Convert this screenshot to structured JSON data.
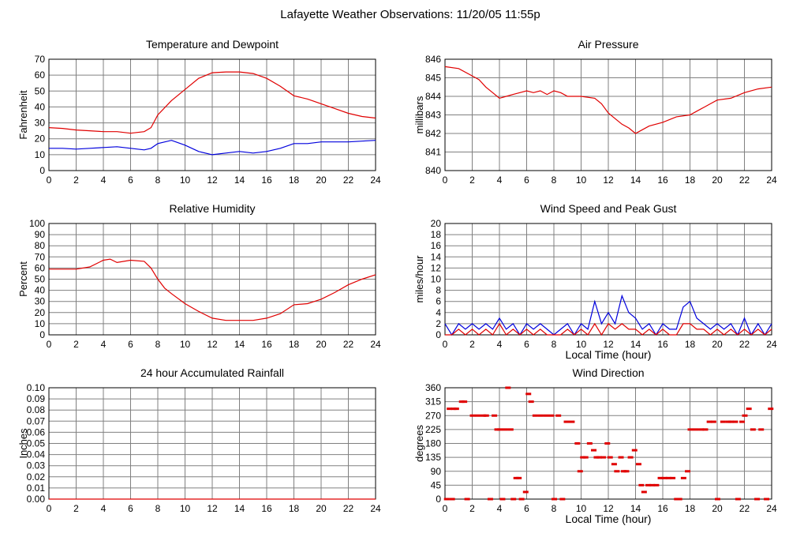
{
  "page_title": "Lafayette Weather Observations: 11/20/05 11:55p",
  "colors": {
    "red": "#e00000",
    "blue": "#0000dd",
    "grid": "#808080"
  },
  "chart_data": [
    {
      "id": "temperature",
      "type": "line",
      "title": "Temperature and Dewpoint",
      "ylabel": "Fahrenheit",
      "xlabel": "",
      "xlim": [
        0,
        24
      ],
      "ylim": [
        0,
        70
      ],
      "x_ticks": [
        "0",
        "2",
        "4",
        "6",
        "8",
        "10",
        "12",
        "14",
        "16",
        "18",
        "20",
        "22",
        "24"
      ],
      "y_ticks": [
        "0",
        "10",
        "20",
        "30",
        "40",
        "50",
        "60",
        "70"
      ],
      "grid": true,
      "x": [
        0,
        1,
        2,
        3,
        4,
        5,
        6,
        7,
        7.5,
        8,
        9,
        10,
        11,
        12,
        13,
        14,
        15,
        16,
        17,
        18,
        19,
        20,
        21,
        22,
        23,
        24
      ],
      "series": [
        {
          "color": "red",
          "values": [
            27,
            26.5,
            25.5,
            25,
            24.5,
            24.5,
            23.5,
            24.5,
            27,
            35,
            44,
            51,
            58,
            61.5,
            62,
            62,
            61,
            58,
            53,
            47,
            45,
            42,
            39,
            36,
            34,
            33
          ]
        },
        {
          "color": "blue",
          "values": [
            14,
            14,
            13.5,
            14,
            14.5,
            15,
            14,
            13,
            14,
            17,
            19,
            16,
            12,
            10,
            11,
            12,
            11,
            12,
            14,
            17,
            17,
            18,
            18,
            18,
            18.5,
            19
          ]
        }
      ]
    },
    {
      "id": "pressure",
      "type": "line",
      "title": "Air Pressure",
      "ylabel": "millibars",
      "xlabel": "",
      "xlim": [
        0,
        24
      ],
      "ylim": [
        840,
        846
      ],
      "x_ticks": [
        "0",
        "2",
        "4",
        "6",
        "8",
        "10",
        "12",
        "14",
        "16",
        "18",
        "20",
        "22",
        "24"
      ],
      "y_ticks": [
        "840",
        "841",
        "842",
        "843",
        "844",
        "845",
        "846"
      ],
      "grid": true,
      "x": [
        0,
        1,
        2,
        2.5,
        3,
        3.5,
        4,
        4.5,
        5,
        5.5,
        6,
        6.5,
        7,
        7.5,
        8,
        8.5,
        9,
        10,
        11,
        11.5,
        12,
        12.5,
        13,
        13.5,
        14,
        14.5,
        15,
        16,
        17,
        18,
        18.5,
        19,
        19.5,
        20,
        21,
        22,
        23,
        24
      ],
      "series": [
        {
          "color": "red",
          "values": [
            845.6,
            845.5,
            845.1,
            844.9,
            844.5,
            844.2,
            843.9,
            844.0,
            844.1,
            844.2,
            844.3,
            844.2,
            844.3,
            844.1,
            844.3,
            844.2,
            844.0,
            844.0,
            843.9,
            843.6,
            843.1,
            842.8,
            842.5,
            842.3,
            842.0,
            842.2,
            842.4,
            842.6,
            842.9,
            843.0,
            843.2,
            843.4,
            843.6,
            843.8,
            843.9,
            844.2,
            844.4,
            844.5
          ]
        }
      ]
    },
    {
      "id": "humidity",
      "type": "line",
      "title": "Relative Humidity",
      "ylabel": "Percent",
      "xlabel": "",
      "xlim": [
        0,
        24
      ],
      "ylim": [
        0,
        100
      ],
      "x_ticks": [
        "0",
        "2",
        "4",
        "6",
        "8",
        "10",
        "12",
        "14",
        "16",
        "18",
        "20",
        "22",
        "24"
      ],
      "y_ticks": [
        "0",
        "10",
        "20",
        "30",
        "40",
        "50",
        "60",
        "70",
        "80",
        "90",
        "100"
      ],
      "grid": true,
      "x": [
        0,
        1,
        2,
        3,
        4,
        4.5,
        5,
        6,
        7,
        7.5,
        8,
        8.5,
        9,
        10,
        11,
        12,
        13,
        14,
        15,
        16,
        17,
        18,
        19,
        20,
        21,
        22,
        23,
        24
      ],
      "series": [
        {
          "color": "red",
          "values": [
            59,
            59,
            59,
            61,
            67,
            68,
            65,
            67,
            66,
            60,
            50,
            42,
            37,
            28,
            21,
            15,
            13,
            13,
            13,
            15,
            19,
            27,
            28,
            32,
            38,
            45,
            50,
            54
          ]
        }
      ]
    },
    {
      "id": "wind",
      "type": "line",
      "title": "Wind Speed and Peak Gust",
      "ylabel": "miles/hour",
      "xlabel": "Local Time (hour)",
      "xlim": [
        0,
        24
      ],
      "ylim": [
        0,
        20
      ],
      "x_ticks": [
        "0",
        "2",
        "4",
        "6",
        "8",
        "10",
        "12",
        "14",
        "16",
        "18",
        "20",
        "22",
        "24"
      ],
      "y_ticks": [
        "0",
        "2",
        "4",
        "6",
        "8",
        "10",
        "12",
        "14",
        "16",
        "18",
        "20"
      ],
      "grid": true,
      "x": [
        0,
        0.5,
        1,
        1.5,
        2,
        2.5,
        3,
        3.5,
        4,
        4.5,
        5,
        5.5,
        6,
        6.5,
        7,
        7.5,
        8,
        8.5,
        9,
        9.5,
        10,
        10.5,
        11,
        11.5,
        12,
        12.5,
        13,
        13.5,
        14,
        14.5,
        15,
        15.5,
        16,
        16.5,
        17,
        17.5,
        18,
        18.5,
        19,
        19.5,
        20,
        20.5,
        21,
        21.5,
        22,
        22.5,
        23,
        23.5,
        24
      ],
      "series": [
        {
          "color": "blue",
          "values": [
            2,
            0,
            2,
            1,
            2,
            1,
            2,
            1,
            3,
            1,
            2,
            0,
            2,
            1,
            2,
            1,
            0,
            1,
            2,
            0,
            2,
            1,
            6,
            2,
            4,
            2,
            7,
            4,
            3,
            1,
            2,
            0,
            2,
            1,
            1,
            5,
            6,
            3,
            2,
            1,
            2,
            1,
            2,
            0,
            3,
            0,
            2,
            0,
            2
          ]
        },
        {
          "color": "red",
          "values": [
            0,
            0,
            1,
            0,
            1,
            0,
            1,
            0,
            2,
            0,
            1,
            0,
            1,
            0,
            1,
            0,
            0,
            0,
            1,
            0,
            1,
            0,
            2,
            0,
            2,
            1,
            2,
            1,
            1,
            0,
            1,
            0,
            1,
            0,
            0,
            2,
            2,
            1,
            1,
            0,
            1,
            0,
            1,
            0,
            1,
            0,
            1,
            0,
            1
          ]
        }
      ]
    },
    {
      "id": "rainfall",
      "type": "line",
      "title": "24 hour Accumulated Rainfall",
      "ylabel": "Inches",
      "xlabel": "",
      "xlim": [
        0,
        24
      ],
      "ylim": [
        0,
        0.1
      ],
      "x_ticks": [
        "0",
        "2",
        "4",
        "6",
        "8",
        "10",
        "12",
        "14",
        "16",
        "18",
        "20",
        "22",
        "24"
      ],
      "y_ticks": [
        "0.00",
        "0.01",
        "0.02",
        "0.03",
        "0.04",
        "0.05",
        "0.06",
        "0.07",
        "0.08",
        "0.09",
        "0.10"
      ],
      "grid": true,
      "x": [
        0,
        24
      ],
      "series": [
        {
          "color": "red",
          "values": [
            0,
            0
          ]
        }
      ]
    },
    {
      "id": "direction",
      "type": "scatter",
      "title": "Wind Direction",
      "ylabel": "degrees",
      "xlabel": "Local Time (hour)",
      "xlim": [
        0,
        24
      ],
      "ylim": [
        0,
        360
      ],
      "x_ticks": [
        "0",
        "2",
        "4",
        "6",
        "8",
        "10",
        "12",
        "14",
        "16",
        "18",
        "20",
        "22",
        "24"
      ],
      "y_ticks": [
        "0",
        "45",
        "90",
        "135",
        "180",
        "225",
        "270",
        "315",
        "360"
      ],
      "grid": true,
      "x": [
        0.1,
        0.3,
        0.5,
        0.6,
        0.8,
        1.2,
        1.4,
        1.6,
        2.0,
        2.4,
        2.8,
        3.0,
        3.3,
        3.6,
        3.8,
        4.0,
        4.2,
        4.4,
        4.6,
        4.8,
        5.0,
        5.2,
        5.4,
        5.6,
        5.9,
        6.1,
        6.3,
        6.6,
        7.0,
        7.4,
        7.8,
        8.0,
        8.3,
        8.6,
        8.9,
        9.3,
        9.7,
        9.9,
        10.1,
        10.3,
        10.6,
        10.9,
        11.1,
        11.3,
        11.6,
        11.9,
        12.1,
        12.4,
        12.6,
        12.9,
        13.1,
        13.3,
        13.6,
        13.9,
        14.2,
        14.4,
        14.6,
        14.9,
        15.2,
        15.5,
        15.8,
        16.1,
        16.4,
        16.7,
        17.0,
        17.2,
        17.5,
        17.8,
        18.0,
        18.4,
        18.8,
        19.1,
        19.4,
        19.7,
        20.0,
        20.4,
        20.8,
        21.0,
        21.3,
        21.5,
        21.8,
        22.0,
        22.3,
        22.6,
        22.9,
        23.2,
        23.6,
        23.9
      ],
      "series": [
        {
          "color": "red",
          "values": [
            0,
            292,
            0,
            292,
            292,
            315,
            315,
            0,
            270,
            270,
            270,
            270,
            0,
            270,
            225,
            225,
            0,
            225,
            360,
            225,
            0,
            68,
            68,
            0,
            23,
            340,
            315,
            270,
            270,
            270,
            270,
            0,
            270,
            0,
            250,
            250,
            180,
            90,
            135,
            135,
            180,
            158,
            135,
            135,
            135,
            180,
            135,
            113,
            90,
            135,
            90,
            90,
            135,
            158,
            113,
            45,
            23,
            45,
            45,
            45,
            68,
            68,
            68,
            68,
            0,
            0,
            68,
            90,
            225,
            225,
            225,
            225,
            250,
            250,
            0,
            250,
            250,
            250,
            250,
            0,
            250,
            270,
            292,
            225,
            0,
            225,
            0,
            292
          ]
        }
      ]
    }
  ]
}
